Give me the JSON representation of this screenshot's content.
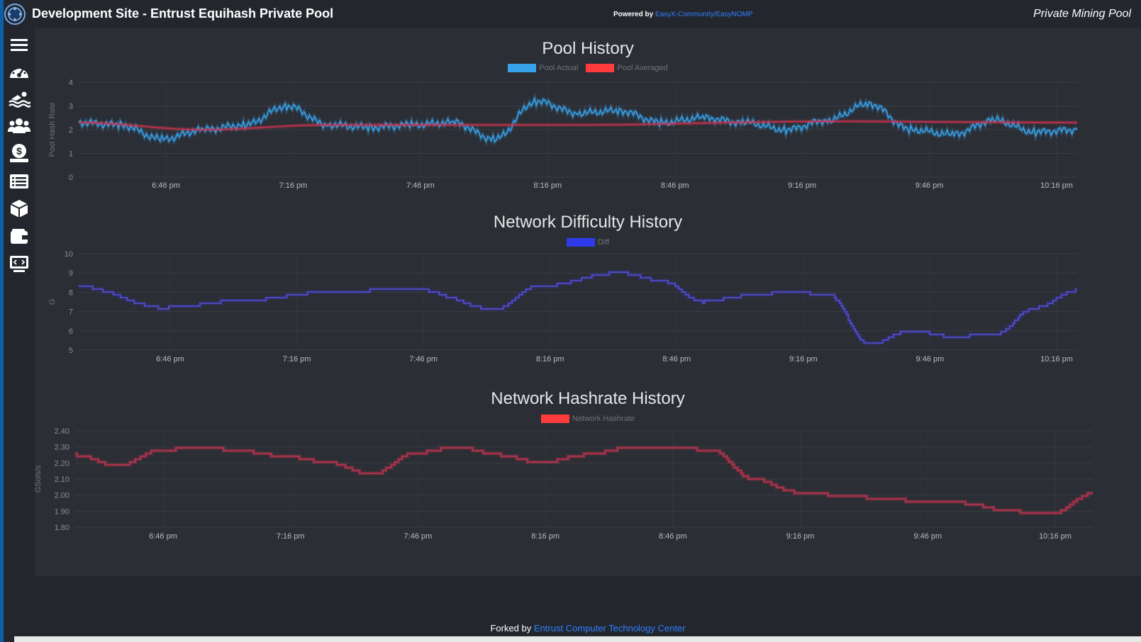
{
  "header": {
    "title": "Development Site - Entrust Equihash Private Pool",
    "powered_prefix": "Powered by",
    "powered_link": "EasyX-Community/EasyNOMP",
    "brand": "Private Mining Pool"
  },
  "sidebar": {
    "items": [
      {
        "icon": "menu-icon"
      },
      {
        "icon": "dashboard-gauge-icon"
      },
      {
        "icon": "pools-swimmer-icon"
      },
      {
        "icon": "miners-users-icon"
      },
      {
        "icon": "payments-money-icon"
      },
      {
        "icon": "list-icon"
      },
      {
        "icon": "blocks-cube-icon"
      },
      {
        "icon": "wallet-icon"
      },
      {
        "icon": "api-screen-icon"
      }
    ]
  },
  "charts": {
    "pool": {
      "title": "Pool History"
    },
    "difficulty": {
      "title": "Network Difficulty History"
    },
    "hashrate": {
      "title": "Network Hashrate History"
    }
  },
  "chart_data": [
    {
      "type": "line",
      "title": "Pool History",
      "ylabel": "Pool Hash Rate",
      "xlabel": "",
      "ylim": [
        0,
        4
      ],
      "yticks": [
        "0",
        "1",
        "2",
        "3",
        "4"
      ],
      "xticks": [
        "6:46 pm",
        "7:16 pm",
        "7:46 pm",
        "8:16 pm",
        "8:46 pm",
        "9:16 pm",
        "9:46 pm",
        "10:16 pm"
      ],
      "legend_position": "top",
      "series": [
        {
          "name": "Pool Actual",
          "color": "#36a2eb",
          "x": [
            0,
            10,
            20,
            30,
            40,
            50,
            60,
            70,
            80,
            90,
            100,
            110,
            120,
            130,
            140,
            150,
            160,
            170,
            180,
            190,
            200,
            210,
            220,
            230,
            240
          ],
          "values": [
            2.3,
            2.2,
            1.6,
            2.0,
            2.2,
            3.0,
            2.2,
            2.1,
            2.2,
            2.3,
            1.6,
            3.2,
            2.7,
            2.8,
            2.3,
            2.5,
            2.3,
            2.0,
            2.4,
            3.1,
            2.0,
            1.8,
            2.4,
            1.9,
            2.0
          ]
        },
        {
          "name": "Pool Averaged",
          "color": "#ff3b3b",
          "x": [
            0,
            30,
            60,
            120,
            180,
            240
          ],
          "values": [
            2.3,
            2.0,
            2.2,
            2.2,
            2.35,
            2.3
          ]
        }
      ]
    },
    {
      "type": "line",
      "title": "Network Difficulty History",
      "ylabel": "G",
      "xlabel": "",
      "ylim": [
        5,
        10
      ],
      "yticks": [
        "5",
        "6",
        "7",
        "8",
        "9",
        "10"
      ],
      "xticks": [
        "6:46 pm",
        "7:16 pm",
        "7:46 pm",
        "8:16 pm",
        "8:46 pm",
        "9:16 pm",
        "9:46 pm",
        "10:16 pm"
      ],
      "legend_position": "top",
      "series": [
        {
          "name": "Diff",
          "color": "#2f3bea",
          "x": [
            0,
            20,
            40,
            60,
            80,
            100,
            110,
            130,
            140,
            150,
            160,
            170,
            180,
            190,
            200,
            210,
            220,
            230,
            240
          ],
          "values": [
            8.3,
            7.2,
            7.6,
            8.0,
            8.2,
            7.1,
            8.3,
            9.0,
            8.6,
            7.5,
            7.8,
            8.0,
            7.9,
            5.3,
            6.0,
            5.7,
            5.8,
            7.2,
            8.1
          ]
        }
      ]
    },
    {
      "type": "line",
      "title": "Network Hashrate History",
      "ylabel": "GSols/s",
      "xlabel": "",
      "ylim": [
        1.8,
        2.4
      ],
      "yticks": [
        "1.80",
        "1.90",
        "2.00",
        "2.10",
        "2.20",
        "2.30",
        "2.40"
      ],
      "xticks": [
        "6:46 pm",
        "7:16 pm",
        "7:46 pm",
        "8:16 pm",
        "8:46 pm",
        "9:16 pm",
        "9:46 pm",
        "10:16 pm"
      ],
      "legend_position": "top",
      "series": [
        {
          "name": "Network Hashrate",
          "color": "#ff3b3b",
          "x": [
            0,
            10,
            20,
            30,
            40,
            50,
            60,
            70,
            80,
            90,
            100,
            110,
            120,
            130,
            140,
            150,
            160,
            170,
            180,
            190,
            200,
            210,
            220,
            230,
            240
          ],
          "values": [
            2.25,
            2.18,
            2.28,
            2.3,
            2.27,
            2.24,
            2.2,
            2.13,
            2.26,
            2.3,
            2.25,
            2.2,
            2.25,
            2.29,
            2.3,
            2.28,
            2.1,
            2.02,
            2.0,
            1.98,
            1.96,
            1.95,
            1.9,
            1.88,
            2.01
          ]
        }
      ]
    }
  ],
  "footer": {
    "prefix": "Forked by",
    "link": "Entrust Computer Technology Center"
  }
}
